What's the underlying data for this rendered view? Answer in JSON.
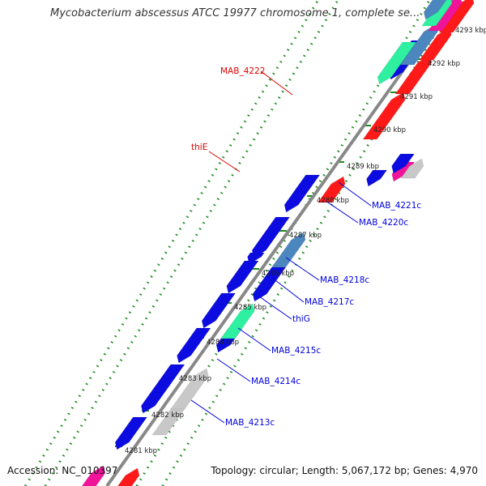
{
  "title": "Mycobacterium abscessus ATCC 19977 chromosome 1, complete se...",
  "footer": {
    "accession": "Accession: NC_010397",
    "summary": "Topology: circular; Length: 5,067,172 bp; Genes: 4,970"
  },
  "ticks": [
    "4293 kbp",
    "4292 kbp",
    "4291 kbp",
    "4290 kbp",
    "4289 kbp",
    "4288 kbp",
    "4287 kbp",
    "4286 kbp",
    "4285 kbp",
    "4284 kbp",
    "4283 kbp",
    "4282 kbp",
    "4281 kbp"
  ],
  "gene_labels": {
    "left": [
      "MAB_4222",
      "thiE"
    ],
    "right": [
      "MAB_4221c",
      "MAB_4220c",
      "MAB_4218c",
      "MAB_4217c",
      "thiG",
      "MAB_4215c",
      "MAB_4214c",
      "MAB_4213c"
    ]
  },
  "colors": {
    "forward_gene": "#ff1a1a",
    "reverse_gene": "#0c0ce0",
    "steelblue_gene": "#4c86be",
    "seagreen_gene": "#2ef0a0",
    "gray_gene": "#c8c8c8",
    "pink_gene": "#f0149a",
    "backbone": "#888888",
    "tick_dots": "#1e8c1e",
    "label_left": "#dd0000",
    "label_right": "#0000dd"
  }
}
